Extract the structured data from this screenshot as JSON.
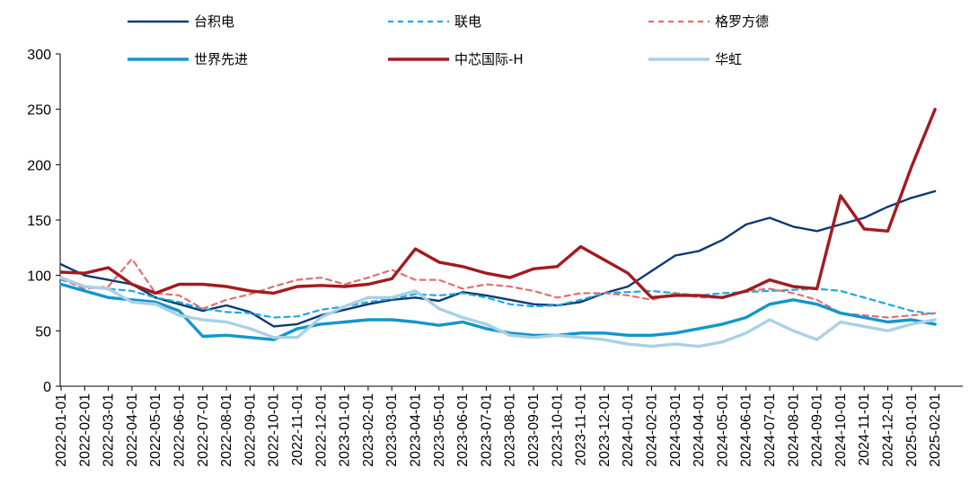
{
  "chart_data": {
    "type": "line",
    "title": "",
    "xlabel": "",
    "ylabel": "",
    "ylim": [
      0,
      300
    ],
    "yticks": [
      0,
      50,
      100,
      150,
      200,
      250,
      300
    ],
    "grid": false,
    "legend_position": "top",
    "x": [
      "2022-01-01",
      "2022-02-01",
      "2022-03-01",
      "2022-04-01",
      "2022-05-01",
      "2022-06-01",
      "2022-07-01",
      "2022-08-01",
      "2022-09-01",
      "2022-10-01",
      "2022-11-01",
      "2022-12-01",
      "2023-01-01",
      "2023-02-01",
      "2023-03-01",
      "2023-04-01",
      "2023-05-01",
      "2023-06-01",
      "2023-07-01",
      "2023-08-01",
      "2023-09-01",
      "2023-10-01",
      "2023-11-01",
      "2023-12-01",
      "2024-01-01",
      "2024-02-01",
      "2024-03-01",
      "2024-04-01",
      "2024-05-01",
      "2024-06-01",
      "2024-07-01",
      "2024-08-01",
      "2024-09-01",
      "2024-10-01",
      "2024-11-01",
      "2024-12-01",
      "2025-01-01",
      "2025-02-01"
    ],
    "series": [
      {
        "name": "台积电",
        "color": "#0b3a73",
        "dash": "solid",
        "width": 2.4,
        "values": [
          110,
          100,
          96,
          92,
          80,
          74,
          68,
          73,
          67,
          54,
          56,
          64,
          69,
          74,
          78,
          80,
          77,
          85,
          82,
          78,
          74,
          73,
          76,
          84,
          90,
          104,
          118,
          122,
          132,
          146,
          152,
          144,
          140,
          146,
          152,
          162,
          170,
          176
        ]
      },
      {
        "name": "联电",
        "color": "#1fa8e0",
        "dash": "6,5",
        "width": 2.2,
        "values": [
          96,
          90,
          88,
          86,
          80,
          76,
          70,
          67,
          66,
          62,
          63,
          69,
          72,
          76,
          79,
          83,
          82,
          84,
          80,
          74,
          72,
          73,
          78,
          84,
          85,
          86,
          84,
          82,
          84,
          85,
          86,
          87,
          88,
          86,
          80,
          74,
          68,
          65
        ]
      },
      {
        "name": "格罗方德",
        "color": "#e07070",
        "dash": "6,5",
        "width": 2.2,
        "values": [
          97,
          88,
          90,
          115,
          84,
          82,
          70,
          78,
          83,
          90,
          96,
          98,
          92,
          98,
          105,
          96,
          96,
          88,
          92,
          90,
          86,
          80,
          84,
          84,
          82,
          78,
          84,
          80,
          80,
          86,
          88,
          84,
          78,
          66,
          64,
          62,
          64,
          66
        ]
      },
      {
        "name": "世界先进",
        "color": "#1296cc",
        "dash": "solid",
        "width": 3.4,
        "values": [
          92,
          86,
          80,
          78,
          76,
          68,
          45,
          46,
          44,
          42,
          52,
          56,
          58,
          60,
          60,
          58,
          55,
          58,
          52,
          48,
          46,
          46,
          48,
          48,
          46,
          46,
          48,
          52,
          56,
          62,
          74,
          78,
          74,
          66,
          62,
          58,
          60,
          56
        ]
      },
      {
        "name": "中芯国际-H",
        "color": "#a31a1f",
        "dash": "solid",
        "width": 3.4,
        "values": [
          103,
          102,
          107,
          92,
          84,
          92,
          92,
          90,
          86,
          84,
          90,
          91,
          90,
          92,
          97,
          124,
          112,
          108,
          102,
          98,
          106,
          108,
          126,
          114,
          102,
          80,
          82,
          82,
          80,
          86,
          96,
          90,
          88,
          172,
          142,
          140,
          198,
          250
        ]
      },
      {
        "name": "华虹",
        "color": "#a9d1e3",
        "dash": "solid",
        "width": 3.4,
        "values": [
          98,
          90,
          88,
          76,
          74,
          64,
          60,
          58,
          52,
          44,
          44,
          62,
          72,
          80,
          80,
          86,
          70,
          62,
          56,
          46,
          44,
          46,
          44,
          42,
          38,
          36,
          38,
          36,
          40,
          48,
          60,
          50,
          42,
          58,
          54,
          50,
          56,
          60
        ]
      }
    ]
  },
  "legend": [
    {
      "label": "台积电"
    },
    {
      "label": "联电"
    },
    {
      "label": "格罗方德"
    },
    {
      "label": "世界先进"
    },
    {
      "label": "中芯国际-H"
    },
    {
      "label": "华虹"
    }
  ]
}
